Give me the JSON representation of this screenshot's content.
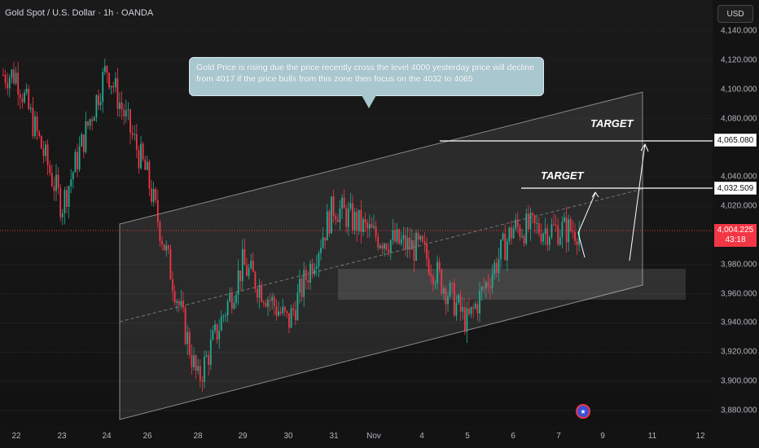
{
  "symbol": {
    "title": "Gold Spot / U.S. Dollar · 1h · OANDA"
  },
  "price_scale": {
    "currency": "USD",
    "ticks": [
      "4,140.000",
      "4,120.000",
      "4,100.000",
      "4,080.000",
      "4,040.000",
      "4,020.000",
      "3,980.000",
      "3,960.000",
      "3,940.000",
      "3,920.000",
      "3,900.000",
      "3,880.000"
    ],
    "tick_values": [
      4140,
      4120,
      4100,
      4080,
      4040,
      4020,
      3980,
      3960,
      3940,
      3920,
      3900,
      3880
    ]
  },
  "time_scale": {
    "ticks": [
      "22",
      "23",
      "24",
      "26",
      "28",
      "29",
      "30",
      "31",
      "Nov",
      "4",
      "5",
      "6",
      "7",
      "9",
      "11",
      "12"
    ]
  },
  "annotation": {
    "text": "Gold Price is rising due the price recently cross the level 4000 yesterday price will decline from 4017 if the price bulls from this zone then focus on the 4032 to 4065"
  },
  "targets": [
    {
      "label": "TARGET",
      "level_text": "4,065.080",
      "level": 4065.08
    },
    {
      "label": "TARGET",
      "level_text": "4,032.509",
      "level": 4032.509
    }
  ],
  "last_price": {
    "price": "4,004.225",
    "countdown": "43:18",
    "value": 4004.225
  },
  "colors": {
    "up": "#22ab94",
    "down": "#f23645",
    "background": "#131313"
  },
  "chart_data": {
    "type": "candlestick",
    "x_labels": [
      "22",
      "23",
      "24",
      "26",
      "28",
      "29",
      "30",
      "31",
      "Nov",
      "4",
      "5",
      "6",
      "7"
    ],
    "approx_closes": [
      4110,
      4020,
      4115,
      4040,
      3900,
      3980,
      3940,
      4020,
      4000,
      3990,
      3940,
      4005,
      4004
    ],
    "ylim": [
      3870,
      4150
    ],
    "channel": {
      "upper_start": 4015,
      "upper_end": 4100,
      "lower_start": 3873,
      "lower_end": 3963
    },
    "support_zone": [
      3955,
      3975
    ]
  }
}
